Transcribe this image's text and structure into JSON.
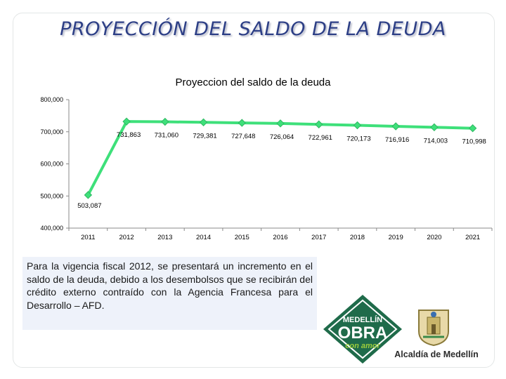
{
  "slide": {
    "title": "PROYECCIÓN DEL SALDO DE LA DEUDA",
    "note": "Para la vigencia fiscal 2012, se presentará un incremento en el saldo de la deuda, debido a los desembolsos que se recibirán del crédito externo contraído con la Agencia Francesa para el Desarrollo – AFD.",
    "logo": {
      "line1": "MEDELLÍN",
      "line2": "OBRA",
      "line3": "con amor",
      "primary_color": "#1f6b4a",
      "accent_color": "#9ccc3c"
    },
    "seal": {
      "name": "escudo-medellin-icon"
    },
    "alcaldia": "Alcaldía de Medellín"
  },
  "chart_data": {
    "type": "line",
    "title": "Proyeccion del saldo de la deuda",
    "xlabel": "",
    "ylabel": "",
    "categories": [
      "2011",
      "2012",
      "2013",
      "2014",
      "2015",
      "2016",
      "2017",
      "2018",
      "2019",
      "2020",
      "2021"
    ],
    "series": [
      {
        "values": [
          503087,
          731863,
          731060,
          729381,
          727648,
          726064,
          722961,
          720173,
          716916,
          714003,
          710998
        ],
        "labels": [
          "503,087",
          "731,863",
          "731,060",
          "729,381",
          "727,648",
          "726,064",
          "722,961",
          "720,173",
          "716,916",
          "714,003",
          "710,998"
        ],
        "color": "#3ee07a"
      }
    ],
    "ylim": [
      400000,
      800000
    ],
    "yticks": [
      400000,
      500000,
      600000,
      700000,
      800000
    ],
    "ytick_labels": [
      "400,000",
      "500,000",
      "600,000",
      "700,000",
      "800,000"
    ],
    "grid": false,
    "legend": "none"
  }
}
